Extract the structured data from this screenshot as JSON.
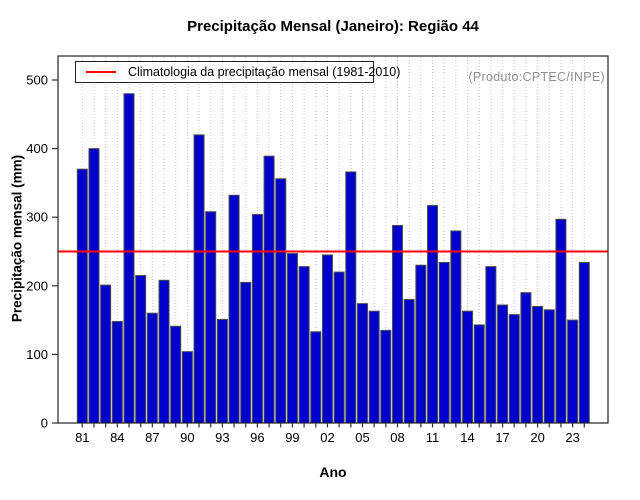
{
  "title": "Precipitação Mensal (Janeiro): Região 44",
  "annotation": "(Produto:CPTEC/INPE)",
  "legend": {
    "label": "Climatologia da precipitação mensal (1981-2010)"
  },
  "chart_data": {
    "type": "bar",
    "title": "Precipitação Mensal (Janeiro): Região 44",
    "xlabel": "Ano",
    "ylabel": "Precipitação mensal (mm)",
    "ylim": [
      0,
      535
    ],
    "yticks": [
      0,
      100,
      200,
      300,
      400,
      500
    ],
    "grid": "vertical-dotted-per-bar",
    "legend_position": "top-left-inside",
    "years": [
      1981,
      1982,
      1983,
      1984,
      1985,
      1986,
      1987,
      1988,
      1989,
      1990,
      1991,
      1992,
      1993,
      1994,
      1995,
      1996,
      1997,
      1998,
      1999,
      2000,
      2001,
      2002,
      2003,
      2004,
      2005,
      2006,
      2007,
      2008,
      2009,
      2010,
      2011,
      2012,
      2013,
      2014,
      2015,
      2016,
      2017,
      2018,
      2019,
      2020,
      2021,
      2022,
      2023,
      2024
    ],
    "x_tick_labels": [
      "81",
      "84",
      "87",
      "90",
      "93",
      "96",
      "99",
      "02",
      "05",
      "08",
      "11",
      "14",
      "17",
      "20",
      "23"
    ],
    "values": [
      370,
      400,
      201,
      148,
      480,
      215,
      160,
      208,
      141,
      104,
      420,
      308,
      151,
      332,
      205,
      304,
      389,
      356,
      247,
      228,
      133,
      245,
      220,
      366,
      174,
      163,
      135,
      288,
      180,
      230,
      317,
      234,
      280,
      163,
      143,
      228,
      172,
      158,
      190,
      170,
      165,
      297,
      150,
      234
    ],
    "climatology_1981_2010": 250,
    "colors": {
      "bar_fill": "#0000CD",
      "bar_border": "#4D4D4D",
      "climatology_line": "#FF0000",
      "grid": "#C9C9C9",
      "frame": "#222222",
      "annotation_text": "#8F8F8F",
      "tick": "#333333"
    }
  }
}
